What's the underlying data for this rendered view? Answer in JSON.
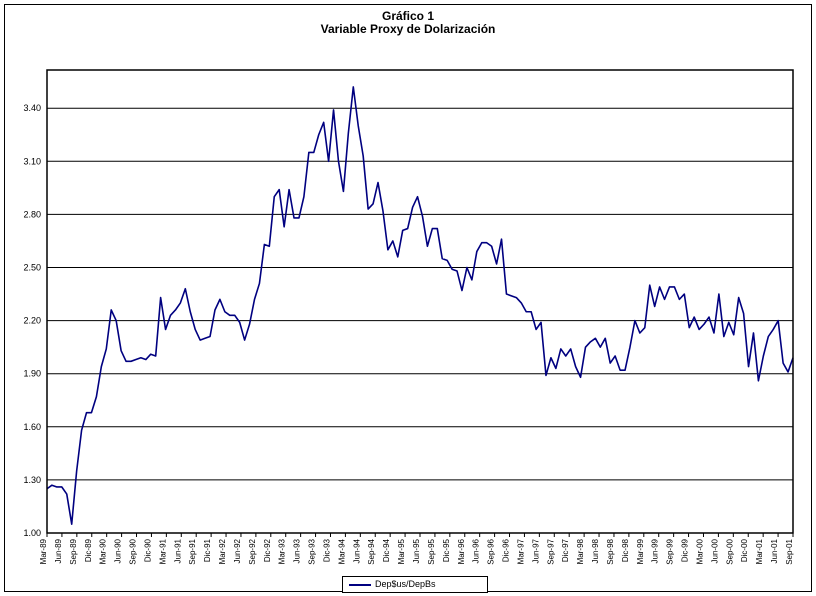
{
  "colors": {
    "series": "#000080",
    "axis": "#000000",
    "grid": "#000000",
    "background": "#ffffff"
  },
  "chart_data": {
    "type": "line",
    "title": "Gráfico 1",
    "subtitle": "Variable Proxy de Dolarización",
    "xlabel": "",
    "ylabel": "",
    "ylim": [
      1.0,
      3.4
    ],
    "y_ticks": [
      "1.00",
      "1.30",
      "1.60",
      "1.90",
      "2.20",
      "2.50",
      "2.80",
      "3.10",
      "3.40"
    ],
    "grid": "horizontal",
    "legend": "bottom-center",
    "x_tick_labels": [
      "Mar-89",
      "Jun-89",
      "Sep-89",
      "Dic-89",
      "Mar-90",
      "Jun-90",
      "Sep-90",
      "Dic-90",
      "Mar-91",
      "Jun-91",
      "Sep-91",
      "Dic-91",
      "Mar-92",
      "Jun-92",
      "Sep-92",
      "Dic-92",
      "Mar-93",
      "Jun-93",
      "Sep-93",
      "Dic-93",
      "Mar-94",
      "Jun-94",
      "Sep-94",
      "Dic-94",
      "Mar-95",
      "Jun-95",
      "Sep-95",
      "Dic-95",
      "Mar-96",
      "Jun-96",
      "Sep-96",
      "Dic-96",
      "Mar-97",
      "Jun-97",
      "Sep-97",
      "Dic-97",
      "Mar-98",
      "Jun-98",
      "Sep-98",
      "Dic-98",
      "Mar-99",
      "Jun-99",
      "Sep-99",
      "Dic-99",
      "Mar-00",
      "Jun-00",
      "Sep-00",
      "Dic-00",
      "Mar-01",
      "Jun-01",
      "Sep-01"
    ],
    "series": [
      {
        "name": "Dep$us/DepBs",
        "values": [
          1.25,
          1.27,
          1.26,
          1.26,
          1.22,
          1.05,
          1.35,
          1.58,
          1.68,
          1.68,
          1.77,
          1.94,
          2.04,
          2.26,
          2.2,
          2.03,
          1.97,
          1.97,
          1.98,
          1.99,
          1.98,
          2.01,
          2.0,
          2.33,
          2.15,
          2.23,
          2.26,
          2.3,
          2.38,
          2.25,
          2.15,
          2.09,
          2.1,
          2.11,
          2.26,
          2.32,
          2.25,
          2.23,
          2.23,
          2.19,
          2.09,
          2.18,
          2.32,
          2.41,
          2.63,
          2.62,
          2.9,
          2.94,
          2.73,
          2.94,
          2.78,
          2.78,
          2.9,
          3.15,
          3.15,
          3.25,
          3.32,
          3.1,
          3.39,
          3.1,
          2.93,
          3.26,
          3.52,
          3.3,
          3.13,
          2.83,
          2.86,
          2.98,
          2.82,
          2.6,
          2.65,
          2.56,
          2.71,
          2.72,
          2.84,
          2.9,
          2.79,
          2.62,
          2.72,
          2.72,
          2.55,
          2.54,
          2.49,
          2.48,
          2.37,
          2.5,
          2.43,
          2.59,
          2.64,
          2.64,
          2.62,
          2.52,
          2.66,
          2.35,
          2.34,
          2.33,
          2.3,
          2.25,
          2.25,
          2.15,
          2.19,
          1.89,
          1.99,
          1.93,
          2.04,
          2.0,
          2.04,
          1.94,
          1.88,
          2.05,
          2.08,
          2.1,
          2.05,
          2.1,
          1.96,
          2.0,
          1.92,
          1.92,
          2.05,
          2.2,
          2.13,
          2.16,
          2.4,
          2.28,
          2.39,
          2.32,
          2.39,
          2.39,
          2.32,
          2.35,
          2.16,
          2.22,
          2.15,
          2.18,
          2.22,
          2.13,
          2.35,
          2.11,
          2.19,
          2.12,
          2.33,
          2.24,
          1.94,
          2.13,
          1.86,
          2.0,
          2.11,
          2.15,
          2.2,
          1.96,
          1.91,
          1.99
        ]
      }
    ]
  }
}
